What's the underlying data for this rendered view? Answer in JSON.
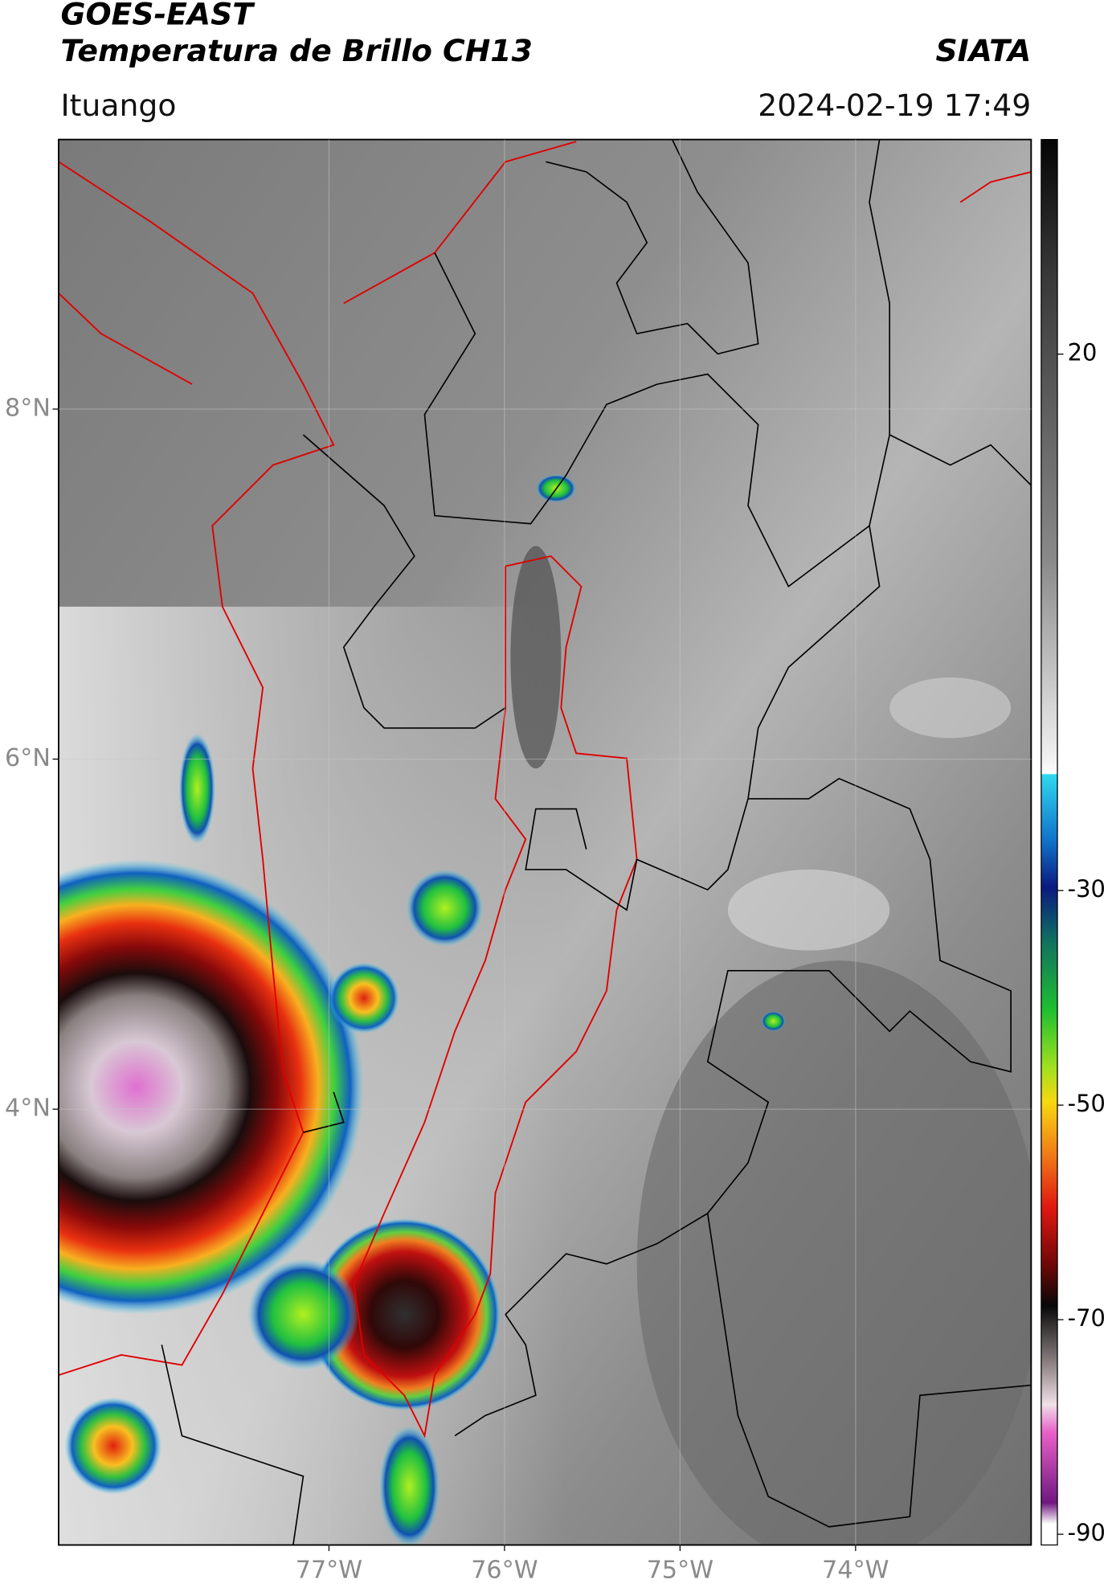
{
  "header": {
    "satellite": "GOES-EAST",
    "product": "Temperatura de Brillo CH13",
    "source": "SIATA",
    "location": "Ituango",
    "datetime": "2024-02-19 17:49"
  },
  "map": {
    "xlim": [
      -78.54,
      -73.0
    ],
    "ylim": [
      1.51,
      9.54
    ],
    "xticks": [
      {
        "value": -77,
        "label": "77°W"
      },
      {
        "value": -76,
        "label": "76°W"
      },
      {
        "value": -75,
        "label": "75°W"
      },
      {
        "value": -74,
        "label": "74°W"
      }
    ],
    "yticks": [
      {
        "value": 8,
        "label": "8°N"
      },
      {
        "value": 6,
        "label": "6°N"
      },
      {
        "value": 4,
        "label": "4°N"
      }
    ],
    "grid": true
  },
  "colorbar": {
    "lim": [
      -91,
      40
    ],
    "ticks": [
      20,
      -30,
      -50,
      -70,
      -90
    ]
  }
}
